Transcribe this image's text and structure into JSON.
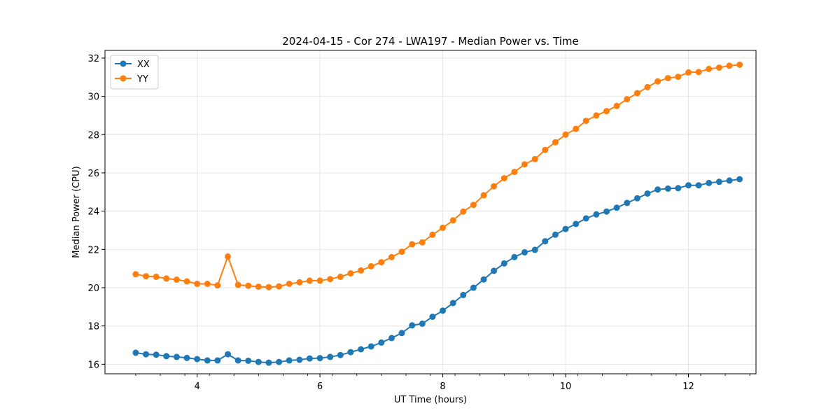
{
  "chart_data": {
    "type": "line",
    "title": "2024-04-15 - Cor 274 - LWA197 - Median Power vs. Time",
    "xlabel": "UT Time (hours)",
    "ylabel": "Median Power (CPU)",
    "xlim": [
      2.5,
      13.1
    ],
    "ylim": [
      15.5,
      32.4
    ],
    "xticks": [
      4,
      6,
      8,
      10,
      12
    ],
    "xtick_labels": [
      "4",
      "6",
      "8",
      "10",
      "12"
    ],
    "yticks": [
      16,
      18,
      20,
      22,
      24,
      26,
      28,
      30,
      32
    ],
    "ytick_labels": [
      "16",
      "18",
      "20",
      "22",
      "24",
      "26",
      "28",
      "30",
      "32"
    ],
    "grid": true,
    "legend_position": "top-left",
    "x": [
      3.0,
      3.167,
      3.333,
      3.5,
      3.667,
      3.833,
      4.0,
      4.167,
      4.333,
      4.5,
      4.667,
      4.833,
      5.0,
      5.167,
      5.333,
      5.5,
      5.667,
      5.833,
      6.0,
      6.167,
      6.333,
      6.5,
      6.667,
      6.833,
      7.0,
      7.167,
      7.333,
      7.5,
      7.667,
      7.833,
      8.0,
      8.167,
      8.333,
      8.5,
      8.667,
      8.833,
      9.0,
      9.167,
      9.333,
      9.5,
      9.667,
      9.833,
      10.0,
      10.167,
      10.333,
      10.5,
      10.667,
      10.833,
      11.0,
      11.167,
      11.333,
      11.5,
      11.667,
      11.833,
      12.0,
      12.167,
      12.333,
      12.5,
      12.667,
      12.833
    ],
    "series": [
      {
        "name": "XX",
        "color": "#1f77b4",
        "values": [
          16.6,
          16.52,
          16.5,
          16.42,
          16.38,
          16.33,
          16.27,
          16.2,
          16.2,
          16.52,
          16.2,
          16.18,
          16.12,
          16.08,
          16.12,
          16.2,
          16.23,
          16.3,
          16.32,
          16.38,
          16.48,
          16.63,
          16.78,
          16.93,
          17.13,
          17.37,
          17.63,
          18.03,
          18.12,
          18.48,
          18.8,
          19.2,
          19.62,
          20.0,
          20.43,
          20.88,
          21.27,
          21.6,
          21.85,
          21.98,
          22.43,
          22.77,
          23.07,
          23.33,
          23.62,
          23.83,
          23.98,
          24.18,
          24.43,
          24.67,
          24.92,
          25.13,
          25.18,
          25.2,
          25.35,
          25.35,
          25.47,
          25.53,
          25.6,
          25.67
        ]
      },
      {
        "name": "YY",
        "color": "#ff7f0e",
        "values": [
          20.7,
          20.6,
          20.57,
          20.48,
          20.42,
          20.33,
          20.2,
          20.2,
          20.12,
          21.63,
          20.15,
          20.1,
          20.05,
          20.03,
          20.07,
          20.2,
          20.28,
          20.37,
          20.37,
          20.45,
          20.57,
          20.75,
          20.9,
          21.12,
          21.33,
          21.6,
          21.88,
          22.27,
          22.37,
          22.77,
          23.13,
          23.52,
          23.98,
          24.33,
          24.83,
          25.3,
          25.72,
          26.05,
          26.45,
          26.72,
          27.2,
          27.6,
          28.0,
          28.3,
          28.72,
          29.0,
          29.23,
          29.5,
          29.85,
          30.17,
          30.48,
          30.78,
          30.95,
          31.02,
          31.25,
          31.27,
          31.43,
          31.5,
          31.6,
          31.65
        ]
      }
    ]
  }
}
